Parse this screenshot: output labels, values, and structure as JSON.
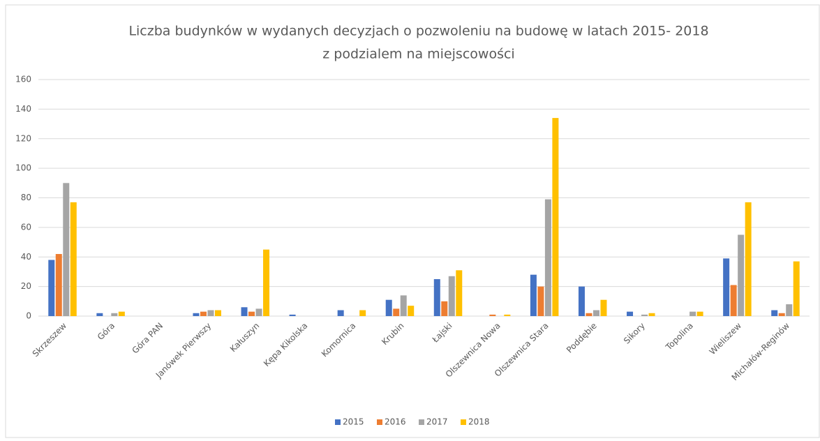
{
  "chart_data": {
    "type": "bar",
    "title": [
      "Liczba budynków w wydanych decyzjach o pozwoleniu na budowę w latach 2015- 2018",
      "z podzialem na miejscowości"
    ],
    "categories": [
      "Skrzeszew",
      "Góra",
      "Góra PAN",
      "Janówek Pierwszy",
      "Kałuszyn",
      "Kępa Kikolska",
      "Komornica",
      "Krubin",
      "Łajski",
      "Olszewnica Nowa",
      "Olszewnica Stara",
      "Poddębie",
      "Sikory",
      "Topolina",
      "Wieliszew",
      "Michałów-Reginów"
    ],
    "series": [
      {
        "name": "2015",
        "color": "#4472c4",
        "values": [
          38,
          2,
          0,
          2,
          6,
          1,
          4,
          11,
          25,
          0,
          28,
          20,
          3,
          0,
          39,
          4
        ]
      },
      {
        "name": "2016",
        "color": "#ed7d31",
        "values": [
          42,
          0,
          0,
          3,
          3,
          0,
          0,
          5,
          10,
          1,
          20,
          2,
          0,
          0,
          21,
          2
        ]
      },
      {
        "name": "2017",
        "color": "#a5a5a5",
        "values": [
          90,
          2,
          0,
          4,
          5,
          0,
          0,
          14,
          27,
          0,
          79,
          4,
          1,
          3,
          55,
          8
        ]
      },
      {
        "name": "2018",
        "color": "#ffc000",
        "values": [
          77,
          3,
          0,
          4,
          45,
          0,
          4,
          7,
          31,
          1,
          134,
          11,
          2,
          3,
          77,
          37
        ]
      }
    ],
    "ylim": [
      0,
      160
    ],
    "yticks": [
      0,
      20,
      40,
      60,
      80,
      100,
      120,
      140,
      160
    ],
    "grid": true,
    "legend": "bottom"
  }
}
